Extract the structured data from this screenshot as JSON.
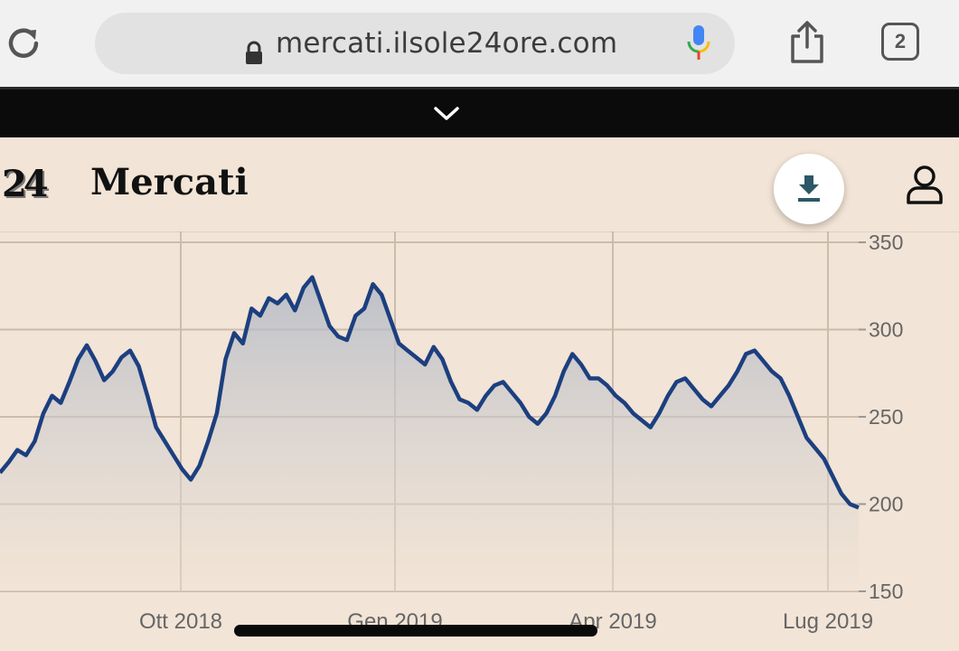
{
  "browser": {
    "url": "mercati.ilsole24ore.com",
    "tabs_count": "2",
    "icons": [
      "reload-icon",
      "lock-icon",
      "microphone-icon",
      "share-icon",
      "tabs-icon"
    ]
  },
  "topbar": {
    "icon": "chevron-down-icon"
  },
  "header": {
    "logo": "24",
    "title": "Mercati",
    "download_icon": "download-icon",
    "user_icon": "user-icon",
    "accent_color": "#2d5866"
  },
  "chart_data": {
    "type": "area",
    "line_color": "#1c3f7f",
    "y_ticks": [
      "350",
      "300",
      "250",
      "200",
      "150"
    ],
    "ylim": [
      150,
      350
    ],
    "x_ticks": [
      "Ott 2018",
      "Gen 2019",
      "Apr 2019",
      "Lug 2019"
    ],
    "grid": true,
    "series": [
      {
        "values": [
          218,
          224,
          231,
          228,
          236,
          252,
          262,
          258,
          270,
          283,
          291,
          282,
          271,
          276,
          284,
          288,
          279,
          262,
          244,
          236,
          228,
          220,
          214,
          222,
          236,
          252,
          283,
          298,
          292,
          312,
          308,
          318,
          315,
          320,
          311,
          324,
          330,
          316,
          302,
          296,
          294,
          308,
          312,
          326,
          320,
          306,
          292,
          288,
          284,
          280,
          290,
          283,
          270,
          260,
          258,
          254,
          262,
          268,
          270,
          264,
          258,
          250,
          246,
          252,
          262,
          276,
          286,
          280,
          272,
          272,
          268,
          262,
          258,
          252,
          248,
          244,
          252,
          262,
          270,
          272,
          266,
          260,
          256,
          262,
          268,
          276,
          286,
          288,
          282,
          276,
          272,
          262,
          250,
          238,
          232,
          226,
          216,
          206,
          200,
          198
        ]
      }
    ]
  }
}
